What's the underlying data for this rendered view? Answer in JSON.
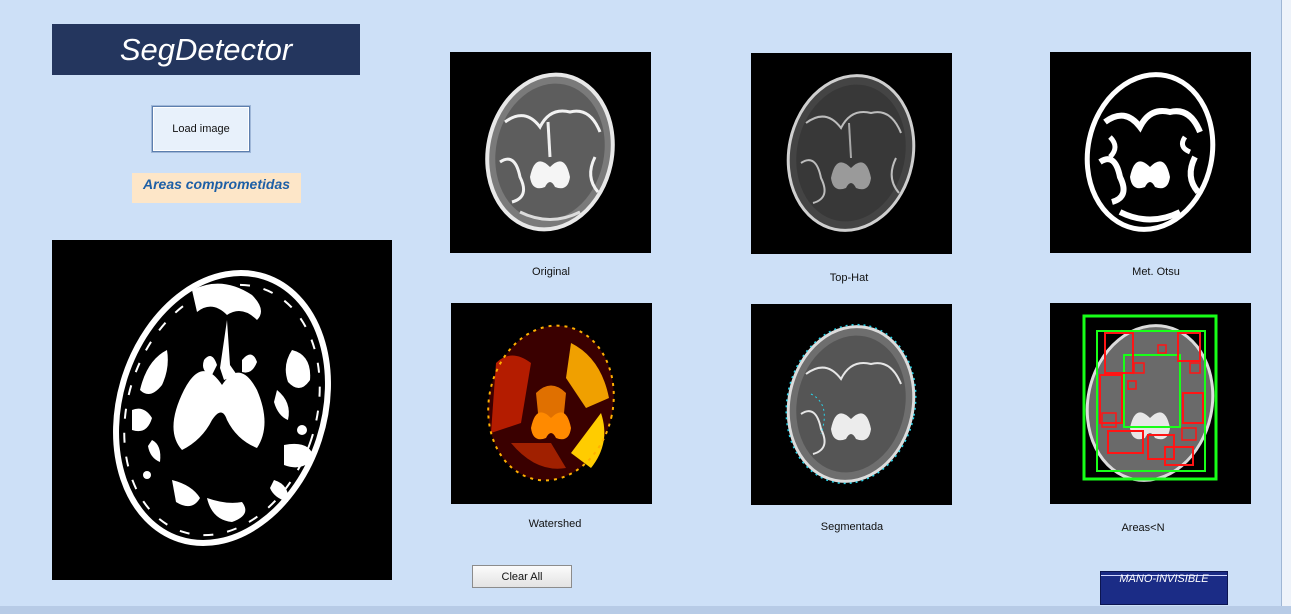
{
  "app": {
    "title": "SegDetector"
  },
  "controls": {
    "load_button": "Load image",
    "areas_label": "Areas comprometidas",
    "clear_button": "Clear All",
    "footer_logo": "MANO-INVISIBLE"
  },
  "panels": {
    "original": "Original",
    "tophat": "Top-Hat",
    "otsu": "Met. Otsu",
    "watershed": "Watershed",
    "segmentada": "Segmentada",
    "areas": "Areas<N"
  },
  "colors": {
    "background": "#cde0f7",
    "title_bg": "#24365e",
    "logo_bg": "#1b2c86",
    "label_bg": "#fde6c8",
    "label_text": "#1d5fa6",
    "box_green": "#18ff18",
    "box_red": "#ff1515"
  }
}
